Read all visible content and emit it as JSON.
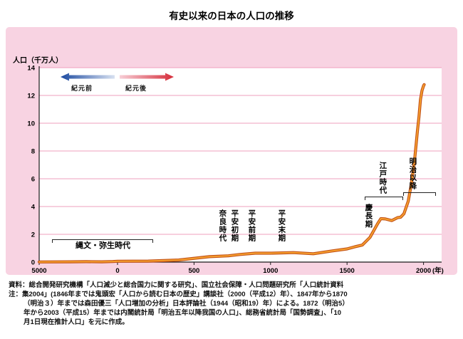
{
  "title": "有史以来の日本の人口の推移",
  "chart_data": {
    "type": "line",
    "title": "有史以来の日本の人口の推移",
    "y_axis_title": "人口（千万人）",
    "x_axis_unit": "(年)",
    "ylim": [
      0,
      14
    ],
    "y_ticks": [
      0,
      2,
      4,
      6,
      8,
      10,
      12,
      14
    ],
    "x_ticks": [
      {
        "label": "5000",
        "year": -5000
      },
      {
        "label": "0",
        "year": 0
      },
      {
        "label": "500",
        "year": 500
      },
      {
        "label": "1000",
        "year": 1000
      },
      {
        "label": "1500",
        "year": 1500
      },
      {
        "label": "2000",
        "year": 2000
      }
    ],
    "direction_labels": {
      "bc": "紀元前",
      "ad": "紀元後"
    },
    "grid": "horizontal pink lines every 2 units",
    "legend_position": "none",
    "series": [
      {
        "points": [
          [
            -5000,
            0.01
          ],
          [
            -3000,
            0.02
          ],
          [
            -2000,
            0.03
          ],
          [
            -1000,
            0.02
          ],
          [
            -300,
            0.04
          ],
          [
            0,
            0.06
          ],
          [
            200,
            0.07
          ],
          [
            400,
            0.15
          ],
          [
            600,
            0.39
          ],
          [
            725,
            0.45
          ],
          [
            800,
            0.55
          ],
          [
            900,
            0.64
          ],
          [
            1000,
            0.64
          ],
          [
            1150,
            0.68
          ],
          [
            1280,
            0.6
          ],
          [
            1400,
            0.8
          ],
          [
            1500,
            0.95
          ],
          [
            1550,
            1.1
          ],
          [
            1600,
            1.23
          ],
          [
            1650,
            1.78
          ],
          [
            1700,
            2.77
          ],
          [
            1721,
            3.13
          ],
          [
            1750,
            3.11
          ],
          [
            1792,
            2.99
          ],
          [
            1830,
            3.2
          ],
          [
            1850,
            3.23
          ],
          [
            1872,
            3.48
          ],
          [
            1900,
            4.38
          ],
          [
            1920,
            5.6
          ],
          [
            1940,
            7.19
          ],
          [
            1950,
            8.32
          ],
          [
            1960,
            9.43
          ],
          [
            1970,
            10.47
          ],
          [
            1980,
            11.71
          ],
          [
            1990,
            12.36
          ],
          [
            2000,
            12.69
          ],
          [
            2004,
            12.78
          ]
        ]
      }
    ],
    "era_annotations": [
      {
        "label": "縄文・弥生時代",
        "orientation": "horizontal"
      },
      {
        "label": "奈良時代",
        "orientation": "vertical"
      },
      {
        "label": "平安初期",
        "orientation": "vertical"
      },
      {
        "label": "平安前期",
        "orientation": "vertical"
      },
      {
        "label": "平安末期",
        "orientation": "vertical"
      },
      {
        "label": "慶長期",
        "orientation": "vertical"
      },
      {
        "label": "江戸時代",
        "orientation": "vertical"
      },
      {
        "label": "明治以降",
        "orientation": "vertical"
      }
    ]
  },
  "colors": {
    "panel_pink": "#f8d3e2",
    "plot_bg": "#ffffff",
    "grid": "#ef9fbd",
    "axis": "#1a1a1a",
    "line_outer": "#c45419",
    "line_inner": "#f7a12e",
    "bc_arrow_dark": "#1c4aa0",
    "bc_arrow_light": "#d8e1f1",
    "ad_arrow_dark": "#d62d3a",
    "ad_arrow_light": "#f7ced6"
  },
  "notes_lines": [
    "資料：総合開発研究機構「人口減少と総合国力に関する研究」、国立社会保障・人口問題研究所「人口統計資料",
    "注：集2004」(1846年までは鬼頭宏「人口から読む日本の歴史」講談社（2000（平成12）年）、1847年から1870",
    "（明治３）年までは森田優三「人口増加の分析」日本評論社（1944（昭和19）年）による。1872（明治5）",
    "年から2003（平成15）年までは内閣統計局「明治五年以降我国の人口」、総務省統計局「国勢調査」、「10",
    "月1日現在推計人口」を元に作成。"
  ]
}
